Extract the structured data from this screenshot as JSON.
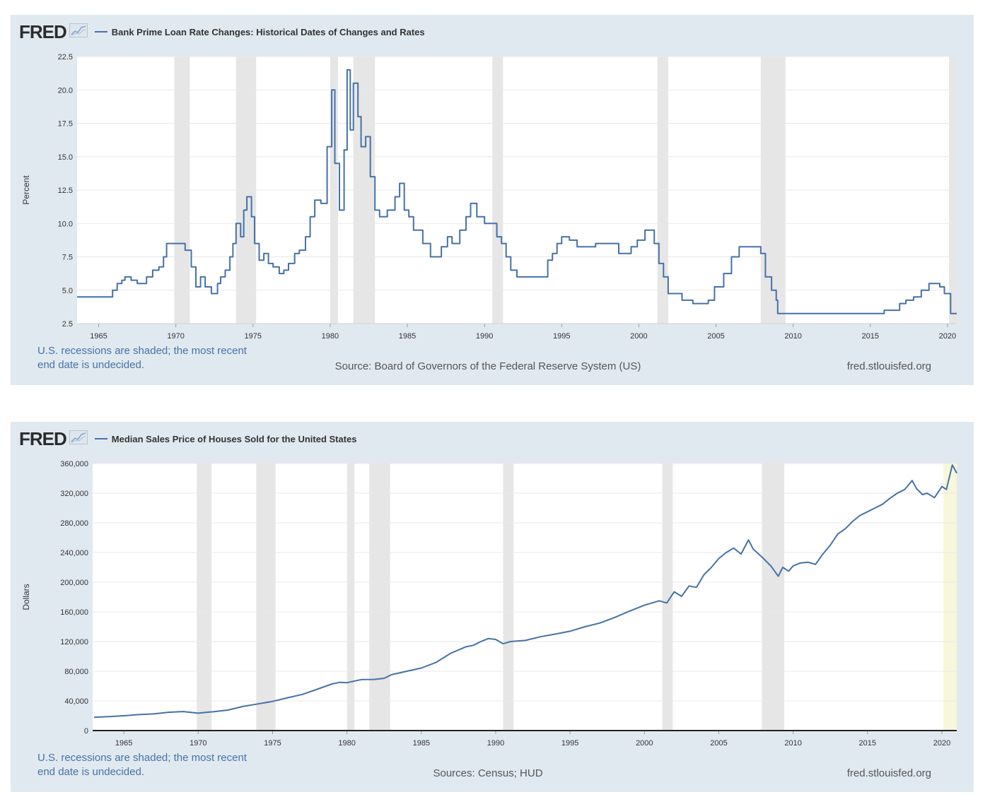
{
  "charts": [
    {
      "logo": "FRED",
      "title": "Bank Prime Loan Rate Changes: Historical Dates of Changes and Rates",
      "ylabel": "Percent",
      "recession_note_line1": "U.S. recessions are shaded; the most recent",
      "recession_note_line2": "end date is undecided.",
      "source": "Source: Board of Governors of the Federal Reserve System (US)",
      "site": "fred.stlouisfed.org"
    },
    {
      "logo": "FRED",
      "title": "Median Sales Price of Houses Sold for the United States",
      "ylabel": "Dollars",
      "recession_note_line1": "U.S. recessions are shaded; the most recent",
      "recession_note_line2": "end date is undecided.",
      "source": "Sources: Census; HUD",
      "site": "fred.stlouisfed.org"
    }
  ],
  "colors": {
    "series": "#4572a7",
    "panel_bg": "#e1e9f0",
    "recession": "#e6e6e6",
    "current_recession": "#f7f7dc",
    "grid": "#e8e8e8"
  },
  "chart_data": [
    {
      "type": "line",
      "step": true,
      "xlim": [
        1963.6,
        2020.6
      ],
      "ylim": [
        2.5,
        22.5
      ],
      "yticks": [
        2.5,
        5.0,
        7.5,
        10.0,
        12.5,
        15.0,
        17.5,
        20.0,
        22.5
      ],
      "ytick_labels": [
        "2.5",
        "5.0",
        "7.5",
        "10.0",
        "12.5",
        "15.0",
        "17.5",
        "20.0",
        "22.5"
      ],
      "xticks": [
        1965,
        1970,
        1975,
        1980,
        1985,
        1990,
        1995,
        2000,
        2005,
        2010,
        2015,
        2020
      ],
      "xtick_labels": [
        "1965",
        "1970",
        "1975",
        "1980",
        "1985",
        "1990",
        "1995",
        "2000",
        "2005",
        "2010",
        "2015",
        "2020"
      ],
      "recessions": [
        [
          1969.9,
          1970.9
        ],
        [
          1973.9,
          1975.2
        ],
        [
          1980.0,
          1980.5
        ],
        [
          1981.5,
          1982.9
        ],
        [
          1990.5,
          1991.2
        ],
        [
          2001.2,
          2001.9
        ],
        [
          2007.9,
          2009.5
        ],
        [
          2020.1,
          2020.6
        ]
      ],
      "series": [
        {
          "x": [
            1963.6,
            1965.9,
            1966.2,
            1966.5,
            1966.7,
            1967.1,
            1967.5,
            1968.1,
            1968.5,
            1968.9,
            1969.2,
            1969.4,
            1969.9,
            1970.6,
            1971.0,
            1971.3,
            1971.6,
            1971.9,
            1972.3,
            1972.7,
            1972.9,
            1973.2,
            1973.5,
            1973.7,
            1973.9,
            1974.2,
            1974.4,
            1974.6,
            1974.9,
            1975.1,
            1975.4,
            1975.7,
            1976.0,
            1976.3,
            1976.7,
            1977.0,
            1977.3,
            1977.7,
            1978.0,
            1978.4,
            1978.7,
            1979.0,
            1979.4,
            1979.8,
            1980.1,
            1980.3,
            1980.6,
            1980.9,
            1981.1,
            1981.3,
            1981.5,
            1981.8,
            1982.0,
            1982.3,
            1982.6,
            1982.9,
            1983.2,
            1983.7,
            1984.2,
            1984.5,
            1984.8,
            1985.1,
            1985.4,
            1986.0,
            1986.5,
            1987.2,
            1987.6,
            1987.9,
            1988.4,
            1988.8,
            1989.1,
            1989.5,
            1990.0,
            1990.8,
            1991.1,
            1991.4,
            1991.7,
            1992.1,
            1992.5,
            1993.4,
            1994.1,
            1994.4,
            1994.7,
            1995.0,
            1995.5,
            1996.0,
            1997.2,
            1998.7,
            1999.5,
            1999.9,
            2000.4,
            2001.0,
            2001.3,
            2001.6,
            2001.9,
            2002.8,
            2003.5,
            2004.5,
            2004.9,
            2005.5,
            2006.0,
            2006.5,
            2007.6,
            2007.9,
            2008.2,
            2008.6,
            2008.9,
            2009.0,
            2015.9,
            2016.9,
            2017.3,
            2017.8,
            2018.3,
            2018.8,
            2019.5,
            2019.8,
            2020.2,
            2020.6
          ],
          "y": [
            4.5,
            5.0,
            5.5,
            5.75,
            6.0,
            5.75,
            5.5,
            6.0,
            6.5,
            6.75,
            7.5,
            8.5,
            8.5,
            8.0,
            6.75,
            5.25,
            6.0,
            5.25,
            4.75,
            5.5,
            6.0,
            6.5,
            7.5,
            8.5,
            10.0,
            9.0,
            11.0,
            12.0,
            10.5,
            8.5,
            7.25,
            7.75,
            7.0,
            6.75,
            6.25,
            6.5,
            7.0,
            7.75,
            8.0,
            9.0,
            10.5,
            11.75,
            11.5,
            15.75,
            20.0,
            14.5,
            11.0,
            15.5,
            21.5,
            17.0,
            20.5,
            18.0,
            15.75,
            16.5,
            13.5,
            11.0,
            10.5,
            11.0,
            12.0,
            13.0,
            11.0,
            10.5,
            9.5,
            8.5,
            7.5,
            8.25,
            9.0,
            8.5,
            9.5,
            10.5,
            11.5,
            10.5,
            10.0,
            9.0,
            8.5,
            7.5,
            6.5,
            6.0,
            6.0,
            6.0,
            7.25,
            7.75,
            8.5,
            9.0,
            8.75,
            8.25,
            8.5,
            7.75,
            8.25,
            8.75,
            9.5,
            8.5,
            7.0,
            6.0,
            4.75,
            4.25,
            4.0,
            4.25,
            5.25,
            6.25,
            7.5,
            8.25,
            8.25,
            7.75,
            6.0,
            5.0,
            4.25,
            3.25,
            3.5,
            4.0,
            4.25,
            4.5,
            5.0,
            5.5,
            5.25,
            4.75,
            3.25,
            3.25
          ]
        }
      ]
    },
    {
      "type": "line",
      "xlim": [
        1962.9,
        2021.0
      ],
      "ylim": [
        0,
        360000
      ],
      "yticks": [
        0,
        40000,
        80000,
        120000,
        160000,
        200000,
        240000,
        280000,
        320000,
        360000
      ],
      "ytick_labels": [
        "0",
        "40,000",
        "80,000",
        "120,000",
        "160,000",
        "200,000",
        "240,000",
        "280,000",
        "320,000",
        "360,000"
      ],
      "xticks": [
        1965,
        1970,
        1975,
        1980,
        1985,
        1990,
        1995,
        2000,
        2005,
        2010,
        2015,
        2020
      ],
      "xtick_labels": [
        "1965",
        "1970",
        "1975",
        "1980",
        "1985",
        "1990",
        "1995",
        "2000",
        "2005",
        "2010",
        "2015",
        "2020"
      ],
      "recessions": [
        [
          1969.9,
          1970.9
        ],
        [
          1973.9,
          1975.2
        ],
        [
          1980.0,
          1980.5
        ],
        [
          1981.5,
          1982.9
        ],
        [
          1990.5,
          1991.2
        ],
        [
          2001.2,
          2001.9
        ],
        [
          2007.9,
          2009.4
        ]
      ],
      "current_recession": [
        2020.1,
        2021.0
      ],
      "series": [
        {
          "x": [
            1963.0,
            1964.0,
            1965.0,
            1966.0,
            1967.0,
            1968.0,
            1969.0,
            1970.0,
            1970.5,
            1971.0,
            1972.0,
            1973.0,
            1974.0,
            1975.0,
            1976.0,
            1977.0,
            1978.0,
            1979.0,
            1979.5,
            1980.0,
            1981.0,
            1981.8,
            1982.0,
            1982.5,
            1983.0,
            1984.0,
            1985.0,
            1986.0,
            1987.0,
            1988.0,
            1988.5,
            1989.0,
            1989.5,
            1990.0,
            1990.5,
            1991.0,
            1992.0,
            1993.0,
            1994.0,
            1995.0,
            1996.0,
            1997.0,
            1998.0,
            1999.0,
            2000.0,
            2001.0,
            2001.5,
            2002.0,
            2002.5,
            2003.0,
            2003.5,
            2004.0,
            2004.5,
            2005.0,
            2005.5,
            2006.0,
            2006.5,
            2007.0,
            2007.3,
            2008.0,
            2008.5,
            2009.0,
            2009.3,
            2009.7,
            2010.0,
            2010.5,
            2011.0,
            2011.5,
            2012.0,
            2012.5,
            2013.0,
            2013.5,
            2014.0,
            2014.5,
            2015.0,
            2015.5,
            2016.0,
            2016.5,
            2017.0,
            2017.5,
            2018.0,
            2018.3,
            2018.7,
            2019.0,
            2019.5,
            2020.0,
            2020.3,
            2020.7,
            2021.0
          ],
          "y": [
            18000,
            18900,
            20000,
            21500,
            22500,
            24700,
            25600,
            23400,
            24500,
            25300,
            27600,
            32500,
            35900,
            39300,
            44200,
            48800,
            55700,
            62900,
            65000,
            64600,
            68900,
            69000,
            69300,
            70500,
            75300,
            79900,
            84300,
            92000,
            104500,
            113000,
            115000,
            120000,
            124000,
            122900,
            117000,
            120000,
            121500,
            126500,
            130000,
            133900,
            140000,
            145000,
            152500,
            161000,
            169000,
            175000,
            172000,
            187000,
            181000,
            195000,
            193000,
            210000,
            220000,
            232000,
            240000,
            246000,
            238000,
            257000,
            245000,
            232000,
            222000,
            208000,
            220000,
            215000,
            222000,
            226000,
            227000,
            224000,
            238000,
            250000,
            265000,
            272000,
            282000,
            290000,
            295000,
            300000,
            305000,
            313000,
            320000,
            325000,
            337000,
            326000,
            318000,
            320000,
            314000,
            329000,
            325000,
            358000,
            347000
          ]
        }
      ]
    }
  ]
}
